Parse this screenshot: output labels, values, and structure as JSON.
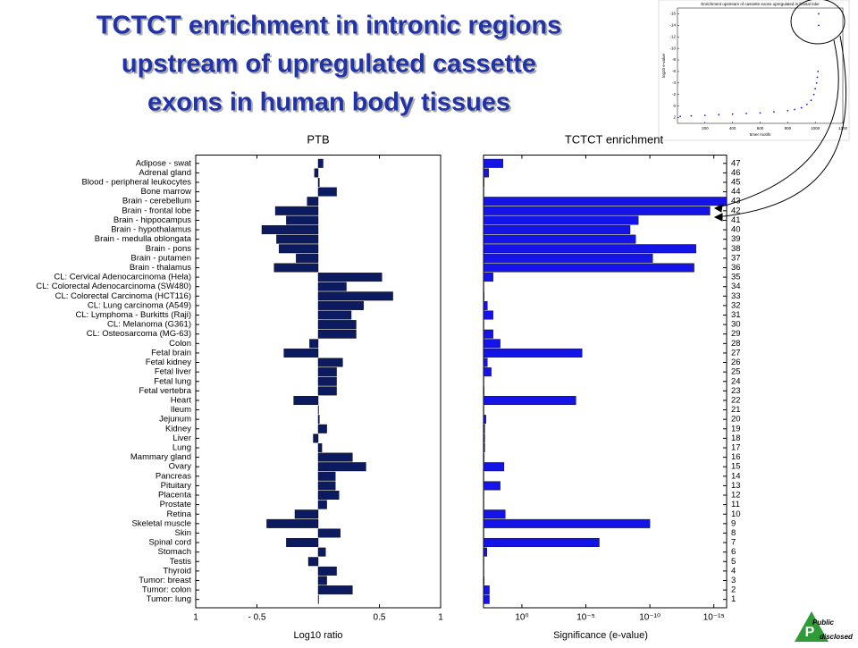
{
  "slide": {
    "title": [
      "TCTCT enrichment  in intronic regions",
      "upstream of upregulated cassette",
      "exons in human body tissues"
    ],
    "logo": {
      "letter": "P",
      "top": "Public",
      "bottom": "disclosed"
    }
  },
  "chart_data": [
    {
      "type": "scatter",
      "title": "Enrichment upstream of cassette exons upregulated in frontal lobe",
      "xlabel": "5mer motifs",
      "ylabel": "log10 e-value",
      "color": "#1a1ad8",
      "x": [
        20,
        100,
        200,
        300,
        400,
        500,
        600,
        700,
        800,
        850,
        900,
        940,
        970,
        990,
        1000,
        1010,
        1015,
        1020,
        1025,
        1025
      ],
      "values": [
        1.8,
        1.7,
        1.6,
        1.5,
        1.4,
        1.3,
        1.2,
        1.0,
        0.8,
        0.6,
        0.3,
        -0.3,
        -1,
        -2,
        -3,
        -4,
        -5,
        -6,
        -14,
        -16
      ],
      "xlim": [
        0,
        1200
      ],
      "ylim": [
        3,
        -17
      ],
      "xticks": [
        200,
        400,
        600,
        800,
        1000,
        1200
      ],
      "yticks": [
        -16,
        -14,
        -12,
        -10,
        -8,
        -6,
        -4,
        -2,
        0,
        2
      ]
    },
    {
      "type": "bar",
      "orientation": "horizontal",
      "title": "PTB",
      "xlabel": "Log10 ratio",
      "color": "#0c1a60",
      "categories": [
        "Adipose - swat",
        "Adrenal gland",
        "Blood - peripheral leukocytes",
        "Bone marrow",
        "Brain - cerebellum",
        "Brain - frontal lobe",
        "Brain - hippocampus",
        "Brain - hypothalamus",
        "Brain - medulla oblongata",
        "Brain - pons",
        "Brain - putamen",
        "Brain - thalamus",
        "CL: Cervical Adenocarcinoma (Hela)",
        "CL: Colorectal Adenocarcinoma (SW480)",
        "CL: Colorectal Carcinoma (HCT116)",
        "CL: Lung carcinoma (A549)",
        "CL: Lymphoma - Burkitts (Raji)",
        "CL: Melanoma (G361)",
        "CL: Osteosarcoma (MG-63)",
        "Colon",
        "Fetal brain",
        "Fetal kidney",
        "Fetal liver",
        "Fetal lung",
        "Fetal vertebra",
        "Heart",
        "Ileum",
        "Jejunum",
        "Kidney",
        "Liver",
        "Lung",
        "Mammary gland",
        "Ovary",
        "Pancreas",
        "Pituitary",
        "Placenta",
        "Prostate",
        "Retina",
        "Skeletal muscle",
        "Skin",
        "Spinal cord",
        "Stomach",
        "Testis",
        "Thyroid",
        "Tumor: breast",
        "Tumor: colon",
        "Tumor: lung"
      ],
      "values": [
        0.04,
        -0.03,
        0.01,
        0.15,
        -0.09,
        -0.35,
        -0.26,
        -0.46,
        -0.34,
        -0.32,
        -0.18,
        -0.36,
        0.52,
        0.23,
        0.61,
        0.37,
        0.27,
        0.31,
        0.31,
        -0.07,
        -0.28,
        0.2,
        0.15,
        0.15,
        0.15,
        -0.2,
        0,
        0.01,
        0.07,
        -0.04,
        0.03,
        0.28,
        0.39,
        0.14,
        0.14,
        0.17,
        0.07,
        -0.19,
        -0.42,
        0.18,
        -0.26,
        0.06,
        -0.08,
        0.15,
        0.07,
        0.28,
        0
      ],
      "xlim": [
        -1,
        1
      ],
      "xticks": [
        {
          "value": -1,
          "label": "1"
        },
        {
          "value": -0.5,
          "label": "- 0.5"
        },
        0.5,
        1
      ]
    },
    {
      "type": "bar",
      "orientation": "horizontal",
      "title": "TCTCT enrichment",
      "xlabel": "Significance (e-value)",
      "color": "#1414e8",
      "xscale": "log",
      "categories": [
        "47",
        "46",
        "45",
        "44",
        "43",
        "42",
        "41",
        "40",
        "39",
        "38",
        "37",
        "36",
        "35",
        "34",
        "33",
        "32",
        "31",
        "30",
        "29",
        "28",
        "27",
        "26",
        "25",
        "24",
        "23",
        "22",
        "21",
        "20",
        "19",
        "18",
        "17",
        "16",
        "15",
        "14",
        "13",
        "12",
        "11",
        "10",
        "9",
        "8",
        "7",
        "6",
        "5",
        "4",
        "3",
        "2",
        "1"
      ],
      "values": [
        30,
        400,
        900,
        1000,
        1e-16,
        2e-15,
        8e-10,
        3.5e-09,
        1.3e-09,
        2.5e-14,
        6e-11,
        3.5e-14,
        180,
        1000,
        900,
        500,
        180,
        1000,
        180,
        50,
        2e-05,
        500,
        250,
        1000,
        900,
        6e-05,
        1000,
        650,
        800,
        800,
        800,
        900,
        25,
        1000,
        50,
        1000,
        1000,
        20,
        1e-10,
        1000,
        9e-07,
        550,
        1000,
        1000,
        900,
        350,
        350
      ],
      "xlim": [
        1000,
        1e-16
      ],
      "xticks": [
        {
          "value": 1,
          "label": "10⁰"
        },
        {
          "value": 1e-05,
          "label": "10⁻⁵"
        },
        {
          "value": 1e-10,
          "label": "10⁻¹⁰"
        },
        {
          "value": 1e-15,
          "label": "10⁻¹⁵"
        }
      ]
    }
  ]
}
